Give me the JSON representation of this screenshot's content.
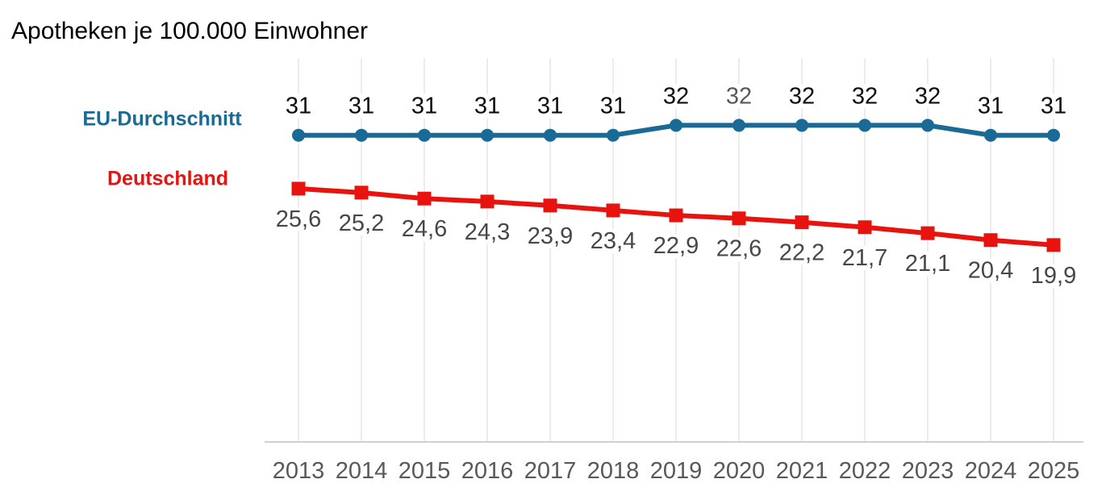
{
  "title": "Apotheken je 100.000 Einwohner",
  "chart_data": {
    "type": "line",
    "title": "Apotheken je 100.000 Einwohner",
    "categories": [
      "2013",
      "2014",
      "2015",
      "2016",
      "2017",
      "2018",
      "2019",
      "2020",
      "2021",
      "2022",
      "2023",
      "2024",
      "2025"
    ],
    "series": [
      {
        "name": "EU-Durchschnitt",
        "color": "#1a6a96",
        "marker": "circle",
        "values": [
          31,
          31,
          31,
          31,
          31,
          31,
          32,
          32,
          32,
          32,
          32,
          31,
          31
        ],
        "labels": [
          "31",
          "31",
          "31",
          "31",
          "31",
          "31",
          "32",
          "32",
          "32",
          "32",
          "32",
          "31",
          "31"
        ],
        "label_color_default": "#0d0d0d",
        "label_color_overrides": {
          "7": "#595959"
        },
        "label_position": "above"
      },
      {
        "name": "Deutschland",
        "color": "#e8120f",
        "marker": "square",
        "values": [
          25.6,
          25.2,
          24.6,
          24.3,
          23.9,
          23.4,
          22.9,
          22.6,
          22.2,
          21.7,
          21.1,
          20.4,
          19.9
        ],
        "labels": [
          "25,6",
          "25,2",
          "24,6",
          "24,3",
          "23,9",
          "23,4",
          "22,9",
          "22,6",
          "22,2",
          "21,7",
          "21,1",
          "20,4",
          "19,9"
        ],
        "label_color_default": "#474747",
        "label_position": "below"
      }
    ],
    "xlabel": "",
    "ylabel": "",
    "ylim": [
      0,
      38.8
    ],
    "grid": "vertical-only",
    "legend_position": "left",
    "grid_color": "#e2e2e2",
    "axis_color": "#d0d0d0",
    "tick_label_color": "#595959"
  }
}
